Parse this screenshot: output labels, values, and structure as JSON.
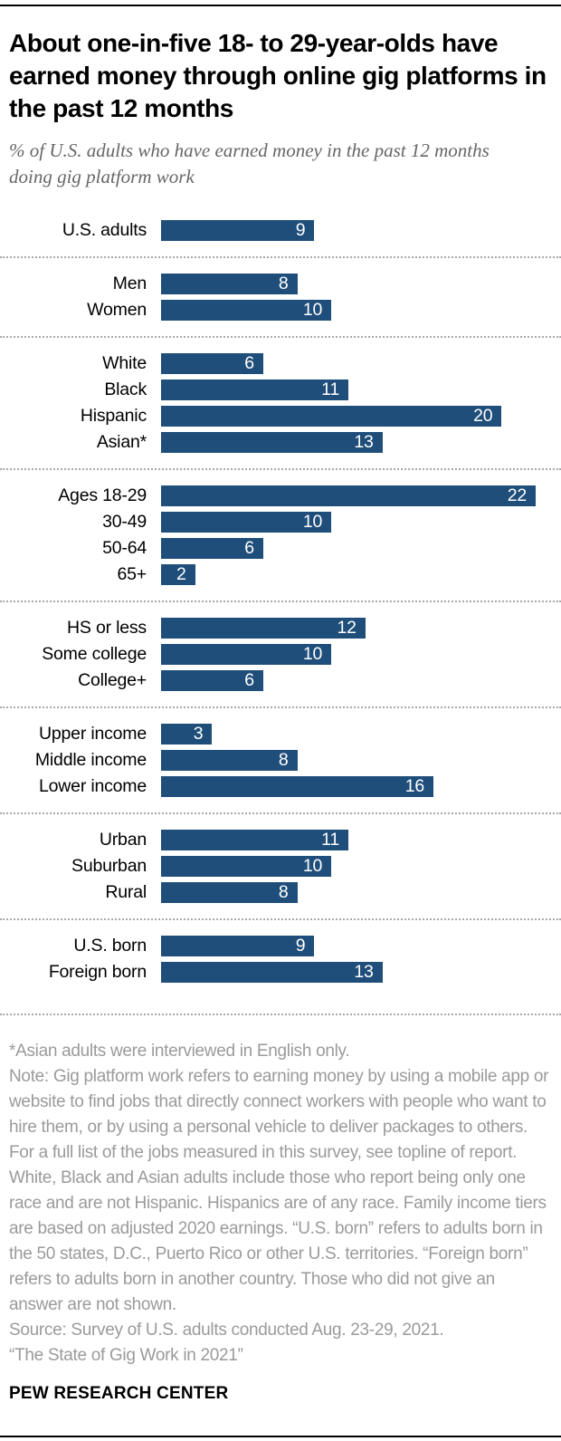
{
  "header": {
    "title": "About one-in-five 18- to 29-year-olds have earned money through online gig platforms in the past 12 months",
    "subtitle": "% of U.S. adults who have earned money in the past 12 months doing gig platform work"
  },
  "chart_data": {
    "type": "bar",
    "orientation": "horizontal",
    "title": "About one-in-five 18- to 29-year-olds have earned money through online gig platforms in the past 12 months",
    "subtitle": "% of U.S. adults who have earned money in the past 12 months doing gig platform work",
    "unit": "%",
    "xlim": [
      0,
      22
    ],
    "grid": false,
    "value_labels": "inside-bar-right",
    "bar_color": "#1f4e7a",
    "groups": [
      {
        "name": "overall",
        "rows": [
          {
            "label": "U.S. adults",
            "value": 9
          }
        ]
      },
      {
        "name": "gender",
        "rows": [
          {
            "label": "Men",
            "value": 8
          },
          {
            "label": "Women",
            "value": 10
          }
        ]
      },
      {
        "name": "race-ethnicity",
        "rows": [
          {
            "label": "White",
            "value": 6
          },
          {
            "label": "Black",
            "value": 11
          },
          {
            "label": "Hispanic",
            "value": 20
          },
          {
            "label": "Asian*",
            "value": 13
          }
        ]
      },
      {
        "name": "age",
        "rows": [
          {
            "label": "Ages 18-29",
            "value": 22
          },
          {
            "label": "30-49",
            "value": 10
          },
          {
            "label": "50-64",
            "value": 6
          },
          {
            "label": "65+",
            "value": 2
          }
        ]
      },
      {
        "name": "education",
        "rows": [
          {
            "label": "HS or less",
            "value": 12
          },
          {
            "label": "Some college",
            "value": 10
          },
          {
            "label": "College+",
            "value": 6
          }
        ]
      },
      {
        "name": "income",
        "rows": [
          {
            "label": "Upper income",
            "value": 3
          },
          {
            "label": "Middle income",
            "value": 8
          },
          {
            "label": "Lower income",
            "value": 16
          }
        ]
      },
      {
        "name": "community",
        "rows": [
          {
            "label": "Urban",
            "value": 11
          },
          {
            "label": "Suburban",
            "value": 10
          },
          {
            "label": "Rural",
            "value": 8
          }
        ]
      },
      {
        "name": "nativity",
        "rows": [
          {
            "label": "U.S. born",
            "value": 9
          },
          {
            "label": "Foreign born",
            "value": 13
          }
        ]
      }
    ],
    "categories": [
      "U.S. adults",
      "Men",
      "Women",
      "White",
      "Black",
      "Hispanic",
      "Asian*",
      "Ages 18-29",
      "30-49",
      "50-64",
      "65+",
      "HS or less",
      "Some college",
      "College+",
      "Upper income",
      "Middle income",
      "Lower income",
      "Urban",
      "Suburban",
      "Rural",
      "U.S. born",
      "Foreign born"
    ],
    "values": [
      9,
      8,
      10,
      6,
      11,
      20,
      13,
      22,
      10,
      6,
      2,
      12,
      10,
      6,
      3,
      8,
      16,
      11,
      10,
      8,
      9,
      13
    ]
  },
  "footnotes": {
    "asterisk": "*Asian adults were interviewed in English only.",
    "note": "Note: Gig platform work refers to earning money by using a mobile app or website to find jobs that directly connect workers with people who want to hire them, or by using a personal vehicle to deliver packages to others. For a full list of the jobs measured in this survey, see topline of report. White, Black and Asian adults include those who report being only one race and are not Hispanic. Hispanics are of any race. Family income tiers are based on adjusted 2020 earnings. “U.S. born” refers to adults born in the 50 states, D.C., Puerto Rico or other U.S. territories. “Foreign born” refers to adults born in another country. Those who did not give an answer are not shown.",
    "source": "Source: Survey of U.S. adults conducted Aug. 23-29, 2021.",
    "report": "“The State of Gig Work in 2021”"
  },
  "brand": {
    "label": "PEW RESEARCH CENTER"
  },
  "colors": {
    "bar": "#1f4e7a",
    "value_text": "#ffffff",
    "title_text": "#000000",
    "subtitle_text": "#666666",
    "note_text": "#9a9a9a",
    "separator": "#a9a9a9",
    "rule": "#000000"
  }
}
